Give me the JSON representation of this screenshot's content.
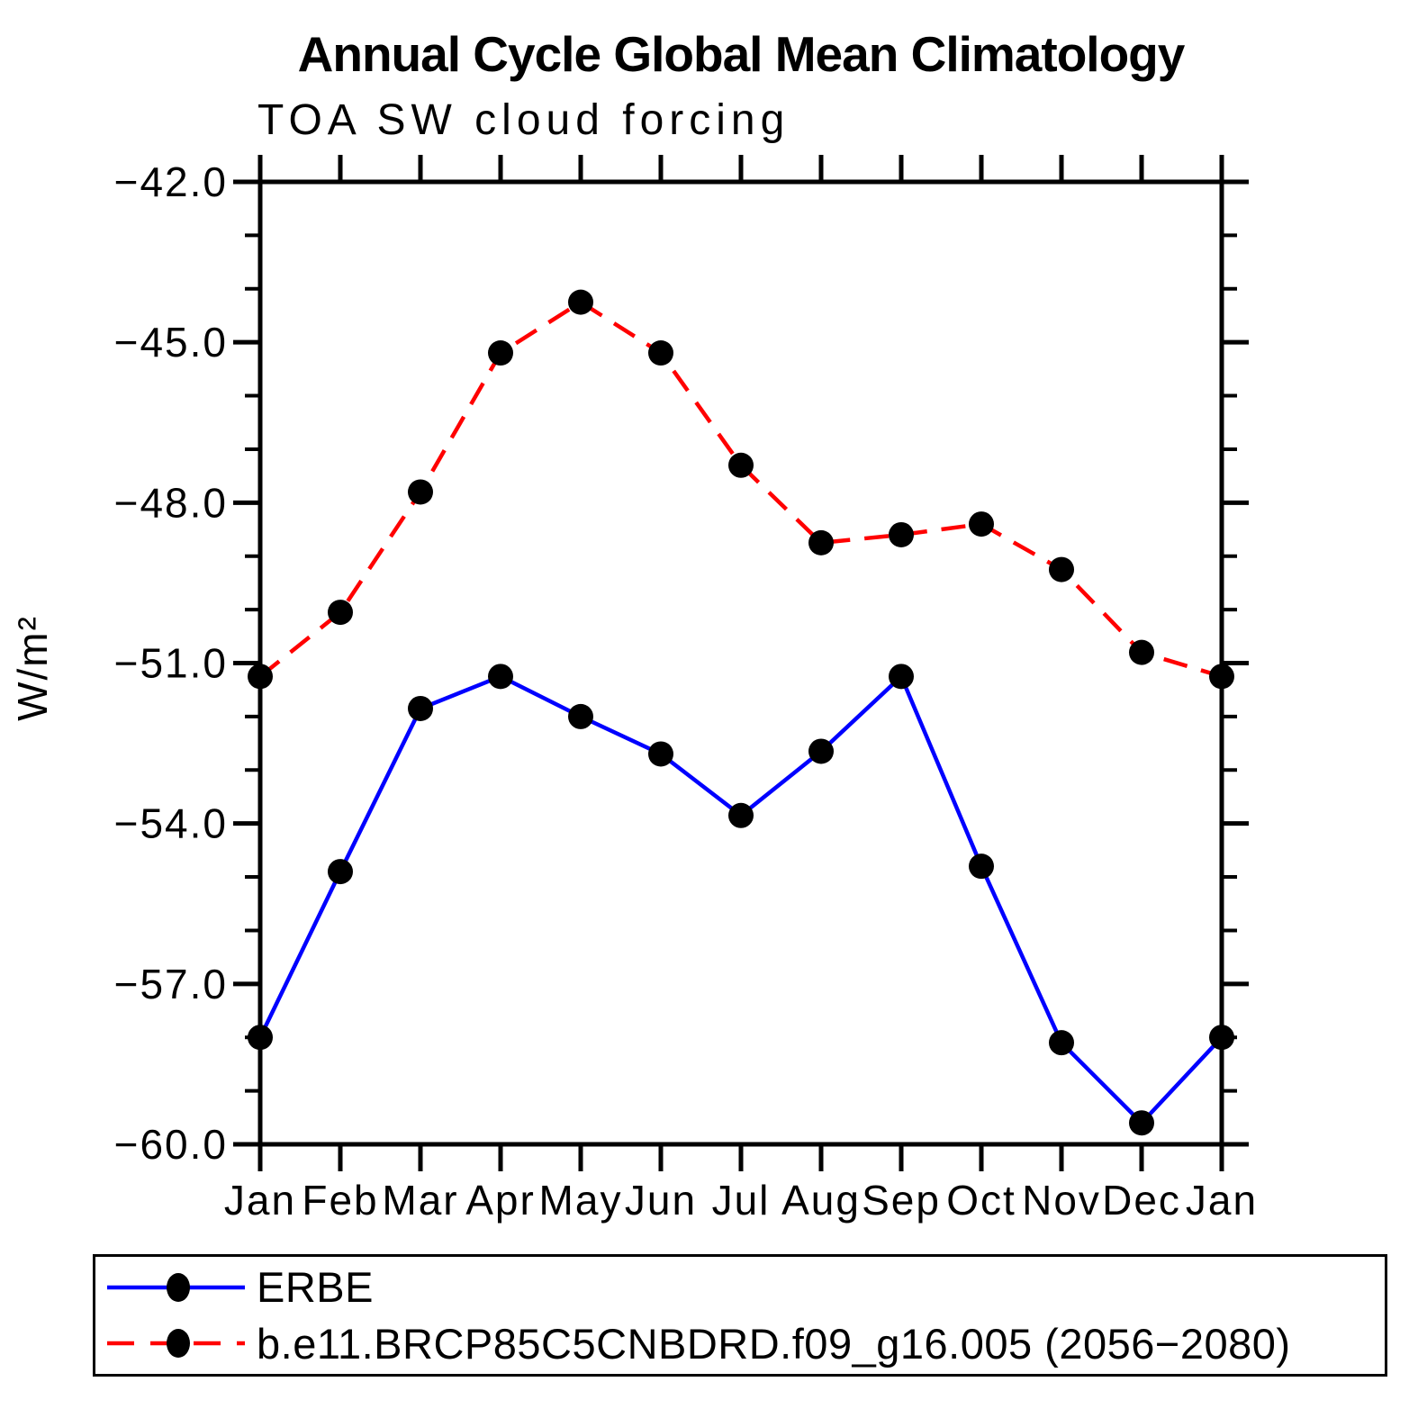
{
  "chart_data": {
    "type": "line",
    "title": "Annual Cycle Global Mean Climatology",
    "subtitle": "TOA SW cloud forcing",
    "ylabel": "W/m²",
    "categories": [
      "Jan",
      "Feb",
      "Mar",
      "Apr",
      "May",
      "Jun",
      "Jul",
      "Aug",
      "Sep",
      "Oct",
      "Nov",
      "Dec",
      "Jan"
    ],
    "ylim": [
      -60.0,
      -42.0
    ],
    "yticks_major": [
      -42,
      -45,
      -48,
      -51,
      -54,
      -57,
      -60
    ],
    "ytick_labels": [
      "−42.0",
      "−45.0",
      "−48.0",
      "−51.0",
      "−54.0",
      "−57.0",
      "−60.0"
    ],
    "ytick_minor_step": 1,
    "grid": false,
    "legend_position": "bottom-left-box",
    "marker": "filled-circle",
    "marker_color": "#000000",
    "series": [
      {
        "name": "ERBE",
        "color": "#0000ff",
        "line_style": "solid",
        "values": [
          -58.0,
          -54.9,
          -51.85,
          -51.25,
          -52.0,
          -52.7,
          -53.85,
          -52.65,
          -51.25,
          -54.8,
          -58.1,
          -59.6,
          -58.0
        ]
      },
      {
        "name": "b.e11.BRCP85C5CNBDRD.f09_g16.005 (2056−2080)",
        "color": "#ff0000",
        "line_style": "dashed",
        "values": [
          -51.25,
          -50.05,
          -47.8,
          -45.2,
          -44.25,
          -45.2,
          -47.3,
          -48.75,
          -48.6,
          -48.4,
          -49.25,
          -50.8,
          -51.25
        ]
      }
    ]
  }
}
